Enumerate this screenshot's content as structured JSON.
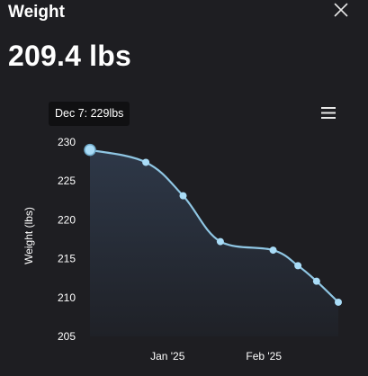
{
  "header": {
    "title": "Weight",
    "close_icon": "close-icon"
  },
  "current_weight": "209.4 lbs",
  "menu": {
    "icon": "hamburger-menu-icon"
  },
  "tooltip": {
    "text": "Dec 7: 229lbs"
  },
  "colors": {
    "background": "#1e1e22",
    "line": "#8fc6e3",
    "point": "#a9dcf7",
    "area_top": "#2e3848",
    "area_bottom": "#1f2127"
  },
  "chart_data": {
    "type": "area",
    "title": "",
    "ylabel": "Weight (lbs)",
    "xlabel": "",
    "ylim": [
      205,
      230
    ],
    "y_ticks": [
      230,
      225,
      220,
      215,
      210,
      205
    ],
    "x_ticks": [
      {
        "label": "Jan '25",
        "date": "2025-01-01"
      },
      {
        "label": "Feb '25",
        "date": "2025-02-01"
      }
    ],
    "x_range": [
      "2024-12-07",
      "2025-02-25"
    ],
    "series": [
      {
        "points": [
          {
            "date": "2024-12-07",
            "value": 229.0
          },
          {
            "date": "2024-12-25",
            "value": 227.4
          },
          {
            "date": "2025-01-06",
            "value": 223.1
          },
          {
            "date": "2025-01-18",
            "value": 217.2
          },
          {
            "date": "2025-02-04",
            "value": 216.1
          },
          {
            "date": "2025-02-12",
            "value": 214.1
          },
          {
            "date": "2025-02-18",
            "value": 212.1
          },
          {
            "date": "2025-02-25",
            "value": 209.4
          }
        ]
      }
    ],
    "highlighted_point": {
      "date": "2024-12-07",
      "value": 229.0
    },
    "grid": false,
    "legend": "none"
  }
}
